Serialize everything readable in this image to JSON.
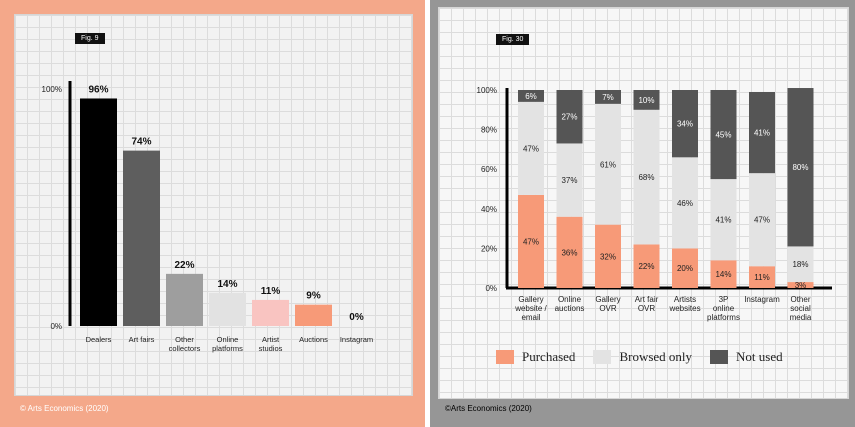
{
  "credits": {
    "left": "© Arts Economics (2020)",
    "right": "©Arts Economics (2020)"
  },
  "chart_data": [
    {
      "type": "bar",
      "figure_label": "Fig. 9",
      "title": "",
      "xlabel": "",
      "ylabel": "",
      "ylim": [
        0,
        100
      ],
      "yticks": [
        "0%",
        "100%"
      ],
      "categories": [
        "Dealers",
        "Art fairs",
        "Other collectors",
        "Online platforms",
        "Artist studios",
        "Auctions",
        "Instagram"
      ],
      "category_lines": [
        [
          "Dealers"
        ],
        [
          "Art fairs"
        ],
        [
          "Other",
          "collectors"
        ],
        [
          "Online",
          "platforms"
        ],
        [
          "Artist",
          "studios"
        ],
        [
          "Auctions"
        ],
        [
          "Instagram"
        ]
      ],
      "values": [
        96,
        74,
        22,
        14,
        11,
        9,
        0
      ],
      "value_labels": [
        "96%",
        "74%",
        "22%",
        "14%",
        "11%",
        "9%",
        "0%"
      ],
      "colors": [
        "#000000",
        "#5e5e5e",
        "#9e9e9e",
        "#e2e2e2",
        "#f9c4c1",
        "#f79a78",
        "#f79a78"
      ]
    },
    {
      "type": "bar",
      "stacked": true,
      "figure_label": "Fig. 30",
      "title": "",
      "xlabel": "",
      "ylabel": "",
      "ylim": [
        0,
        100
      ],
      "yticks": [
        "0%",
        "20%",
        "40%",
        "60%",
        "80%",
        "100%"
      ],
      "categories": [
        "Gallery website / email",
        "Online auctions",
        "Gallery OVR",
        "Art fair OVR",
        "Artists websites",
        "3P online platforms",
        "Instagram",
        "Other social media"
      ],
      "category_lines": [
        [
          "Gallery",
          "website /",
          "email"
        ],
        [
          "Online",
          "auctions"
        ],
        [
          "Gallery",
          "OVR"
        ],
        [
          "Art fair",
          "OVR"
        ],
        [
          "Artists",
          "websites"
        ],
        [
          "3P",
          "online",
          "platforms"
        ],
        [
          "Instagram"
        ],
        [
          "Other",
          "social",
          "media"
        ]
      ],
      "series": [
        {
          "name": "Purchased",
          "color": "#f79a78",
          "values": [
            47,
            36,
            32,
            22,
            20,
            14,
            11,
            3
          ]
        },
        {
          "name": "Browsed only",
          "color": "#e3e3e3",
          "values": [
            47,
            37,
            61,
            68,
            46,
            41,
            47,
            18
          ]
        },
        {
          "name": "Not used",
          "color": "#555555",
          "values": [
            6,
            27,
            7,
            10,
            34,
            45,
            41,
            80
          ]
        }
      ]
    }
  ]
}
